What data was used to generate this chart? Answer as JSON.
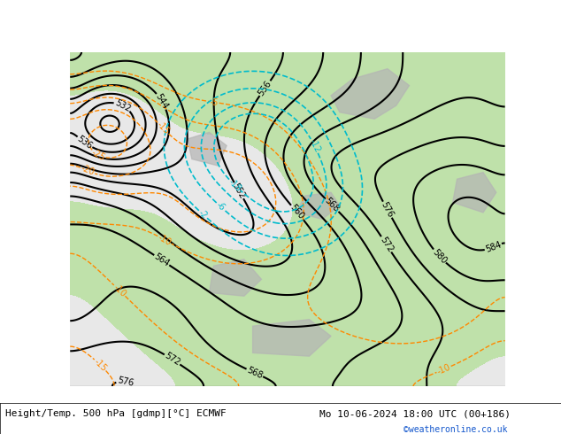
{
  "title_left": "Height/Temp. 500 hPa [gdmp][°C] ECMWF",
  "title_right": "Mo 10-06-2024 18:00 UTC (00+186)",
  "credit": "©weatheronline.co.uk",
  "fig_width": 6.34,
  "fig_height": 4.9,
  "dpi": 100,
  "font_size_title": 8,
  "font_size_credit": 7,
  "bg_color": "#e8e8e8",
  "green_fill_color": "#b8e0a0",
  "gray_terrain_color": "#b4b4b4",
  "white_sea_color": "#f0f0f0",
  "height_contour_color": "#000000",
  "temp_neg_color": "#ff8800",
  "temp_cyan_color": "#00bbcc",
  "temp_zero_color": "#009900"
}
